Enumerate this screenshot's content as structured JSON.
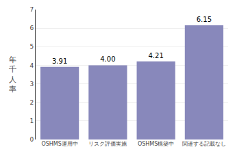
{
  "chart_data": {
    "type": "bar",
    "categories": [
      "OSHMS運用中",
      "リスク評価実施",
      "OSHMS構築中",
      "関連する記載なし"
    ],
    "values": [
      3.91,
      4.0,
      4.21,
      6.15
    ],
    "value_labels": [
      "3.91",
      "4.00",
      "4.21",
      "6.15"
    ],
    "data_labels": true,
    "color": "#8888BB",
    "ylabel": "年\n千\n人\n率",
    "ylim": [
      0,
      7
    ],
    "yticks": [
      0,
      1,
      2,
      3,
      4,
      5,
      6,
      7
    ],
    "grid": true
  }
}
